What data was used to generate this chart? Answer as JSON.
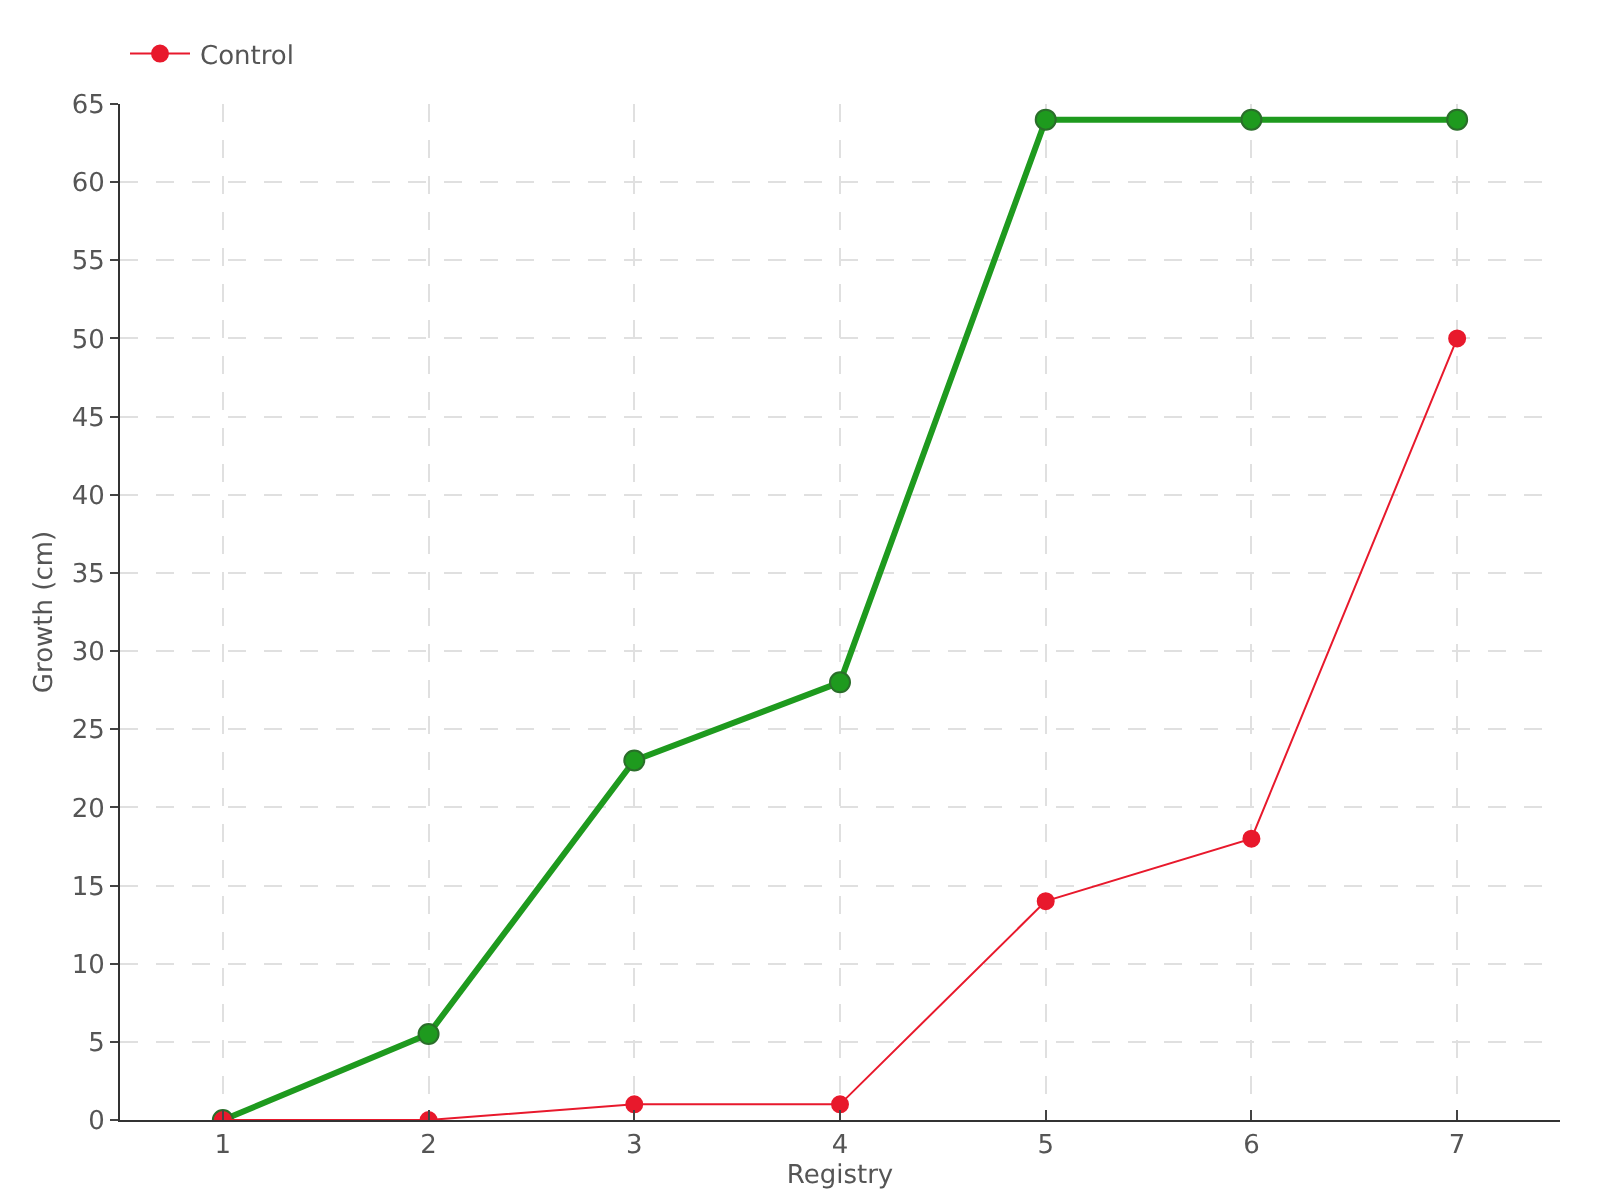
{
  "chart_data": {
    "type": "line",
    "xlabel": "Registry",
    "ylabel": "Growth (cm)",
    "x": [
      1,
      2,
      3,
      4,
      5,
      6,
      7
    ],
    "series": [
      {
        "color": "#1e9a1e",
        "values": [
          0,
          5.5,
          23,
          28,
          64,
          64,
          64
        ]
      },
      {
        "name": "Control",
        "color": "#e8192c",
        "values": [
          0,
          0,
          1,
          1,
          14,
          18,
          50
        ]
      }
    ],
    "xlim": [
      0.5,
      7.5
    ],
    "xticks": [
      1,
      2,
      3,
      4,
      5,
      6,
      7
    ],
    "ylim": [
      0,
      65
    ],
    "yticks": [
      0,
      5,
      10,
      15,
      20,
      25,
      30,
      35,
      40,
      45,
      50,
      55,
      60,
      65
    ],
    "grid": true,
    "legend": "top left",
    "marker": "circle",
    "line_style": "solid"
  }
}
